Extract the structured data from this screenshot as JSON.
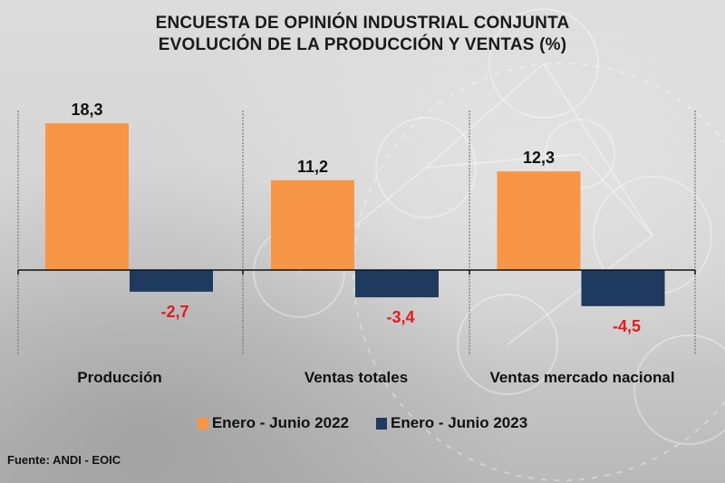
{
  "title": {
    "line1": "ENCUESTA DE OPINIÓN INDUSTRIAL CONJUNTA",
    "line2": "EVOLUCIÓN DE LA PRODUCCIÓN Y VENTAS (%)"
  },
  "source": "Fuente: ANDI - EOIC",
  "colors": {
    "series_2022": "#f79646",
    "series_2023": "#1f3a5f",
    "positive_label": "#111111",
    "negative_label": "#e31c1c"
  },
  "chart_data": {
    "type": "bar",
    "title": "ENCUESTA DE OPINIÓN INDUSTRIAL CONJUNTA — EVOLUCIÓN DE LA PRODUCCIÓN Y VENTAS (%)",
    "xlabel": "",
    "ylabel": "",
    "categories": [
      "Producción",
      "Ventas totales",
      "Ventas mercado nacional"
    ],
    "series": [
      {
        "name": "Enero - Junio 2022",
        "values": [
          18.3,
          11.2,
          12.3
        ],
        "labels": [
          "18,3",
          "11,2",
          "12,3"
        ]
      },
      {
        "name": "Enero - Junio 2023",
        "values": [
          -2.7,
          -3.4,
          -4.5
        ],
        "labels": [
          "-2,7",
          "-3,4",
          "-4,5"
        ]
      }
    ],
    "ylim": [
      -10,
      18.3
    ],
    "grid": false,
    "legend_position": "bottom-center",
    "source": "Fuente: ANDI - EOIC"
  }
}
